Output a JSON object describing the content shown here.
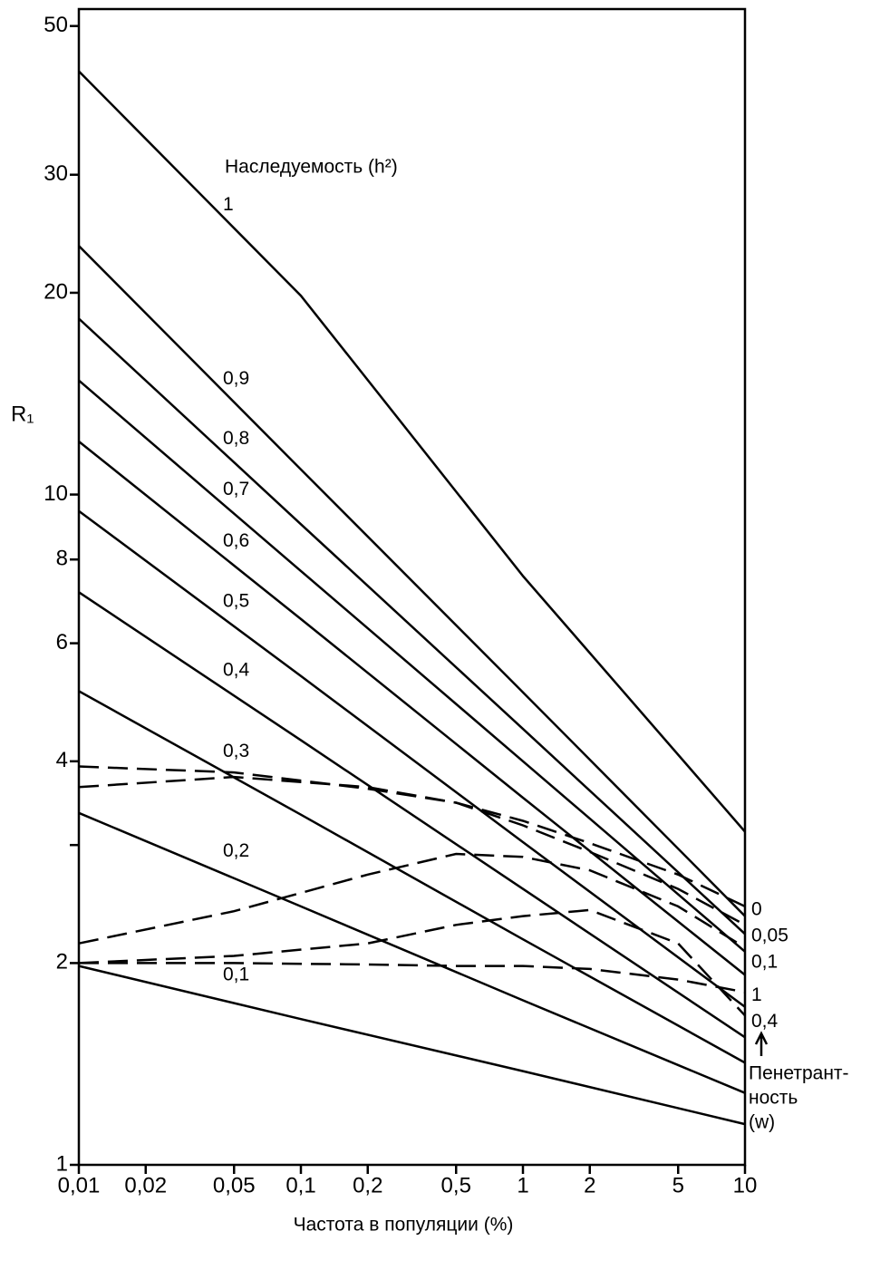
{
  "chart_data": {
    "type": "line",
    "y_label": "R₁",
    "x_label": "Частота в популяции  (%)",
    "legend_title": "Наследуемость (h²)",
    "side_title": [
      "Пенетрант-",
      "ность",
      "(w)"
    ],
    "log_x": true,
    "log_y": true,
    "xlim": [
      0.01,
      10
    ],
    "xticks": [
      {
        "value": 0.01,
        "label": "0,01"
      },
      {
        "value": 0.02,
        "label": "0,02"
      },
      {
        "value": 0.05,
        "label": "0,05"
      },
      {
        "value": 0.1,
        "label": "0,1"
      },
      {
        "value": 0.2,
        "label": "0,2"
      },
      {
        "value": 0.5,
        "label": "0,5"
      },
      1,
      2,
      5,
      10
    ],
    "ylim": [
      1,
      53
    ],
    "yticks": [
      1,
      2,
      4,
      6,
      8,
      10,
      20,
      30,
      50
    ],
    "yminor_ticks": [
      3
    ],
    "series": [
      {
        "name": "1",
        "color": "#000000",
        "dash": false,
        "x": [
          0.01,
          0.1,
          1,
          10
        ],
        "values": [
          42.8,
          19.8,
          7.56,
          3.14
        ]
      },
      {
        "name": "0,9",
        "color": "#000000",
        "dash": false,
        "x": [
          0.01,
          0.1,
          1,
          10
        ],
        "values": [
          23.5,
          10.9,
          5.07,
          2.35
        ]
      },
      {
        "name": "0,8",
        "color": "#000000",
        "dash": false,
        "x": [
          0.01,
          0.1,
          1,
          10
        ],
        "values": [
          18.3,
          9.03,
          4.47,
          2.21
        ]
      },
      {
        "name": "0,7",
        "color": "#000000",
        "dash": false,
        "x": [
          0.01,
          0.1,
          1,
          10
        ],
        "values": [
          14.8,
          7.69,
          4.0,
          2.08
        ]
      },
      {
        "name": "0,6",
        "color": "#000000",
        "dash": false,
        "x": [
          0.01,
          0.1,
          1,
          10
        ],
        "values": [
          12.0,
          6.52,
          3.53,
          1.92
        ]
      },
      {
        "name": "0,5",
        "color": "#000000",
        "dash": false,
        "x": [
          0.01,
          0.1,
          1,
          10
        ],
        "values": [
          9.45,
          5.36,
          3.03,
          1.72
        ]
      },
      {
        "name": "0,4",
        "color": "#000000",
        "dash": false,
        "x": [
          0.01,
          0.1,
          1,
          10
        ],
        "values": [
          7.15,
          4.3,
          2.58,
          1.55
        ]
      },
      {
        "name": "0,3",
        "color": "#000000",
        "dash": false,
        "x": [
          0.01,
          0.1,
          1,
          10
        ],
        "values": [
          5.09,
          3.33,
          2.17,
          1.42
        ]
      },
      {
        "name": "0,2",
        "color": "#000000",
        "dash": false,
        "x": [
          0.01,
          0.1,
          1,
          10
        ],
        "values": [
          3.35,
          2.43,
          1.76,
          1.28
        ]
      },
      {
        "name": "0,1",
        "color": "#000000",
        "dash": false,
        "x": [
          0.01,
          0.1,
          1,
          10
        ],
        "values": [
          1.98,
          1.65,
          1.38,
          1.15
        ]
      },
      {
        "name": "0",
        "color": "#000000",
        "dash": true,
        "x": [
          0.01,
          0.05,
          0.2,
          0.5,
          1,
          2,
          5,
          10
        ],
        "values": [
          3.93,
          3.85,
          3.64,
          3.47,
          3.26,
          3.02,
          2.71,
          2.43
        ]
      },
      {
        "name": "0,05",
        "color": "#000000",
        "dash": true,
        "x": [
          0.01,
          0.05,
          0.2,
          0.5,
          1,
          2,
          5,
          10
        ],
        "values": [
          3.66,
          3.79,
          3.66,
          3.47,
          3.21,
          2.93,
          2.58,
          2.28
        ]
      },
      {
        "name": "0,1",
        "color": "#000000",
        "dash": true,
        "x": [
          0.01,
          0.05,
          0.2,
          0.5,
          1,
          2,
          5,
          10
        ],
        "values": [
          2.14,
          2.39,
          2.71,
          2.91,
          2.88,
          2.75,
          2.43,
          2.11
        ]
      },
      {
        "name": "1",
        "color": "#000000",
        "dash": true,
        "x": [
          0.01,
          0.05,
          0.2,
          0.5,
          1,
          2,
          5,
          10
        ],
        "values": [
          2.0,
          2.0,
          1.99,
          1.98,
          1.98,
          1.96,
          1.89,
          1.81
        ]
      },
      {
        "name": "0,4",
        "color": "#000000",
        "dash": true,
        "x": [
          0.01,
          0.05,
          0.2,
          0.5,
          1,
          2,
          5,
          10
        ],
        "values": [
          2.0,
          2.05,
          2.14,
          2.28,
          2.35,
          2.4,
          2.14,
          1.67
        ]
      }
    ]
  }
}
